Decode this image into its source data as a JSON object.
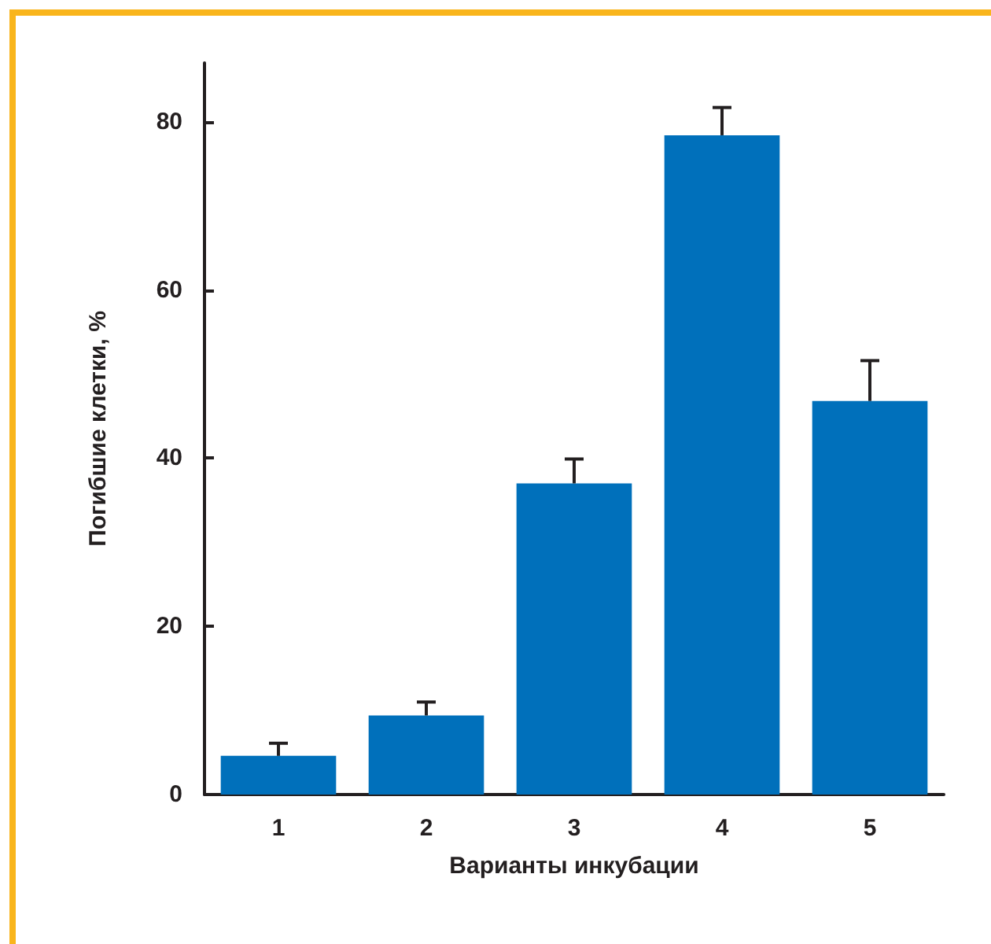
{
  "chart_data": {
    "type": "bar",
    "xlabel": "Варианты инкубации",
    "ylabel": "Погибшие клетки, %",
    "categories": [
      "1",
      "2",
      "3",
      "4",
      "5"
    ],
    "values": [
      4.6,
      9.4,
      37.0,
      78.4,
      46.8
    ],
    "errors": [
      [
        4.6,
        6.1
      ],
      [
        9.4,
        11.0
      ],
      [
        37.0,
        39.9
      ],
      [
        78.4,
        81.7
      ],
      [
        46.8,
        51.6
      ]
    ],
    "color": "#0070bb",
    "ylim": [
      0,
      87
    ],
    "yticks": [
      0,
      20,
      40,
      60,
      80
    ],
    "grid": false
  }
}
